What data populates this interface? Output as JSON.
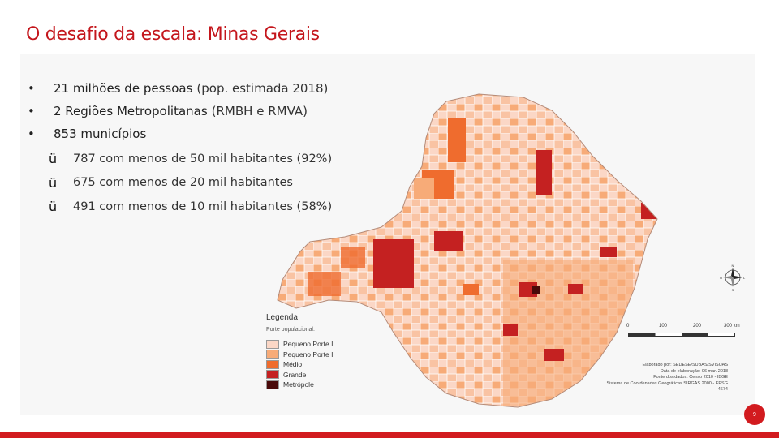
{
  "title": "O desafio da escala: Minas Gerais",
  "bullets": [
    {
      "marker": "•",
      "bold": "21 milhões de pessoas",
      "light": "(pop. estimada 2018)"
    },
    {
      "marker": "•",
      "bold": "2 Regiões Metropolitanas",
      "light": "(RMBH e RMVA)"
    },
    {
      "marker": "•",
      "bold": "853 municípios",
      "light": ""
    }
  ],
  "checks": [
    {
      "marker": "ü",
      "text": "787 com menos de 50 mil habitantes (92%)"
    },
    {
      "marker": "ü",
      "text": "675 com menos de 20 mil habitantes"
    },
    {
      "marker": "ü",
      "text": "491 com menos de 10 mil habitantes (58%)"
    }
  ],
  "legend": {
    "title": "Legenda",
    "subtitle": "Porte populacional:",
    "items": [
      {
        "label": "Pequeno Porte I",
        "color": "#fbd7c6"
      },
      {
        "label": "Pequeno Porte II",
        "color": "#f7ab78"
      },
      {
        "label": "Médio",
        "color": "#ef6c2e"
      },
      {
        "label": "Grande",
        "color": "#c42121"
      },
      {
        "label": "Metrópole",
        "color": "#4a0a0a"
      }
    ]
  },
  "compass": {
    "n": "N",
    "s": "S",
    "e": "L",
    "w": "O"
  },
  "scale": {
    "ticks": [
      "0",
      "100",
      "200",
      "300 km"
    ]
  },
  "credits": [
    "Elaborado por: SEDESE/SUBAS/SVISUAS",
    "Data de elaboração: 06 mar. 2018",
    "Fonte dos dados: Censo 2010 - IBGE",
    "Sistema de Coordenadas Geográficas SIRGAS 2000 - EPSG 4674"
  ],
  "page_number": "9",
  "colors": {
    "accent": "#c4161c",
    "pequeno1": "#fbd7c6",
    "pequeno2": "#f7ab78",
    "medio": "#ef6c2e",
    "grande": "#c42121",
    "metropole": "#4a0a0a"
  },
  "icons": {
    "compass": "compass-rose-icon",
    "check": "check-mark-icon"
  }
}
